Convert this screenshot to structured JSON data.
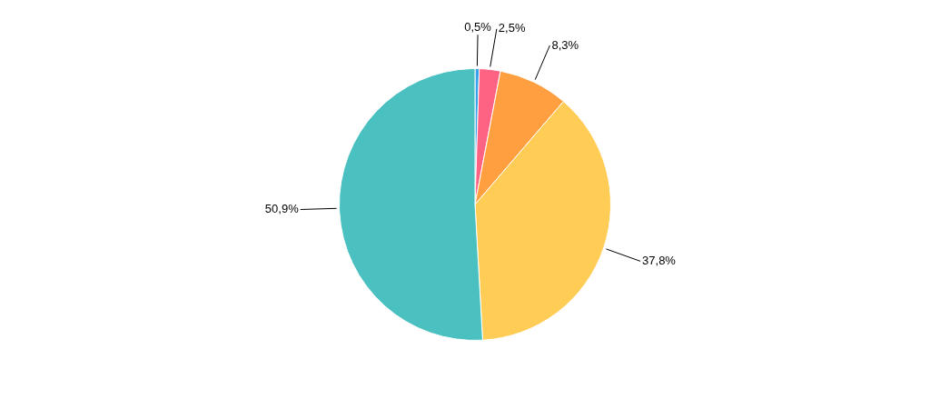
{
  "chart_data": {
    "type": "pie",
    "values": [
      0.5,
      2.5,
      8.3,
      37.8,
      50.9
    ],
    "value_labels": [
      "0,5%",
      "2,5%",
      "8,3%",
      "37,8%",
      "50,9%"
    ],
    "data_labels": true
  }
}
